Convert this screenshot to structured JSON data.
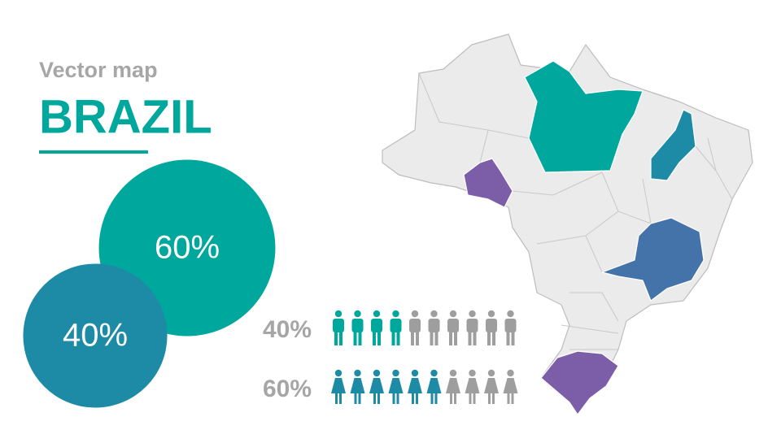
{
  "header": {
    "subtitle": "Vector map",
    "title": "BRAZIL"
  },
  "circles": [
    {
      "label": "60%",
      "value": 60,
      "color": "#00a79d"
    },
    {
      "label": "40%",
      "value": 40,
      "color": "#1e8ba6"
    }
  ],
  "icon_rows": [
    {
      "label": "40%",
      "value": 40,
      "icon": "male",
      "color": "#00a79d"
    },
    {
      "label": "60%",
      "value": 60,
      "icon": "female",
      "color": "#1e8ba6"
    }
  ]
}
